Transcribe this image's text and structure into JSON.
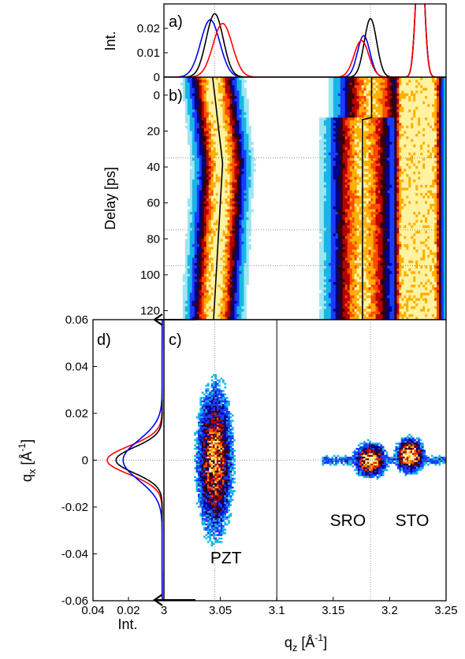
{
  "chart_data": [
    {
      "panel": "a",
      "panel_label": "a)",
      "type": "line",
      "ylabel": "Int.",
      "xlim": [
        3.0,
        3.25
      ],
      "ylim": [
        0,
        0.03
      ],
      "yticks": [
        0,
        0.01,
        0.02
      ],
      "ytick_labels": [
        "0",
        "0.01",
        "0.02"
      ],
      "series": [
        {
          "color": "#0000ff",
          "peaks": [
            {
              "center": 3.041,
              "height": 0.0235,
              "width": 0.0085
            },
            {
              "center": 3.177,
              "height": 0.017,
              "width": 0.0055
            },
            {
              "center": 3.227,
              "height": 0.06,
              "width": 0.0035
            }
          ]
        },
        {
          "color": "#000000",
          "peaks": [
            {
              "center": 3.045,
              "height": 0.026,
              "width": 0.0075
            },
            {
              "center": 3.183,
              "height": 0.024,
              "width": 0.0055
            },
            {
              "center": 3.227,
              "height": 0.06,
              "width": 0.0035
            }
          ]
        },
        {
          "color": "#ff0000",
          "peaks": [
            {
              "center": 3.052,
              "height": 0.022,
              "width": 0.0085
            },
            {
              "center": 3.175,
              "height": 0.015,
              "width": 0.0065
            },
            {
              "center": 3.227,
              "height": 0.06,
              "width": 0.0035
            }
          ]
        }
      ]
    },
    {
      "panel": "b",
      "panel_label": "b)",
      "type": "heatmap",
      "ylabel": "Delay [ps]",
      "xlim": [
        3.0,
        3.25
      ],
      "ylim": [
        -10,
        125
      ],
      "yticks": [
        0,
        20,
        40,
        60,
        80,
        100,
        120
      ],
      "ytick_labels": [
        "0",
        "20",
        "40",
        "60",
        "80",
        "100",
        "120"
      ],
      "hlines_delay": [
        35,
        75,
        95
      ],
      "bands": [
        {
          "name_hint": "PZT",
          "center_start": 3.045,
          "center_max": 3.052,
          "max_delay": 38,
          "center_end": 3.044,
          "width": 0.013
        },
        {
          "name_hint": "SRO",
          "center_start": 3.184,
          "center_after": 3.176,
          "switch_delay": 13,
          "width": 0.018
        },
        {
          "name_hint": "STO",
          "x_from": 3.212,
          "x_to": 3.238
        }
      ],
      "colormap": [
        "#ffffff",
        "#9ae6f2",
        "#18b6e6",
        "#1a3cff",
        "#000088",
        "#3a0000",
        "#b80000",
        "#ff4a00",
        "#ffb000",
        "#fff2a0"
      ]
    },
    {
      "panel": "c",
      "panel_label": "c)",
      "type": "heatmap",
      "xlabel": "q",
      "xlabel_sub": "z",
      "xlabel_unit": " [Å",
      "xlabel_sup": "-1",
      "xlabel_close": "]",
      "xlim": [
        3.0,
        3.25
      ],
      "ylim": [
        -0.06,
        0.06
      ],
      "xticks": [
        3.0,
        3.05,
        3.1,
        3.15,
        3.2,
        3.25
      ],
      "xtick_labels": [
        "3",
        "3.05",
        "3.1",
        "3.15",
        "3.2",
        "3.25"
      ],
      "vline_solid_qz": 3.1,
      "vlines_dotted_qz": [
        3.045,
        3.183
      ],
      "annotations": [
        {
          "text": "PZT",
          "qz": 3.055,
          "qx": -0.044
        },
        {
          "text": "SRO",
          "qz": 3.163,
          "qx": -0.028
        },
        {
          "text": "STO",
          "qz": 3.22,
          "qx": -0.028
        }
      ],
      "spots": [
        {
          "qz": 3.045,
          "qx": 0.0,
          "sigma_qz": 0.009,
          "sigma_qx": 0.018,
          "intensity": 0.75
        },
        {
          "qz": 3.183,
          "qx": 0.0,
          "sigma_qz": 0.008,
          "sigma_qx": 0.004,
          "intensity": 0.95
        },
        {
          "qz": 3.218,
          "qx": 0.002,
          "sigma_qz": 0.007,
          "sigma_qx": 0.004,
          "intensity": 1.0
        }
      ]
    },
    {
      "panel": "d",
      "panel_label": "d)",
      "type": "line",
      "xlabel": "Int.",
      "ylabel": "q",
      "ylabel_sub": "x",
      "ylabel_unit": " [Å",
      "ylabel_sup": "-1",
      "ylabel_close": "]",
      "xlim_reversed": [
        0.04,
        0.0
      ],
      "ylim": [
        -0.06,
        0.06
      ],
      "xticks": [
        0.04,
        0.02
      ],
      "xtick_labels": [
        "0.04",
        "0.02"
      ],
      "yticks": [
        0.06,
        0.04,
        0.02,
        0,
        -0.02,
        -0.04,
        -0.06
      ],
      "ytick_labels": [
        "0.06",
        "0.04",
        "0.02",
        "0",
        "-0.02",
        "-0.04",
        "-0.06"
      ],
      "series": [
        {
          "color": "#ff0000",
          "center": 0.0,
          "height": 0.031,
          "width": 0.006,
          "background": 0.001
        },
        {
          "color": "#000000",
          "center": 0.0,
          "height": 0.026,
          "width": 0.0055,
          "background": 0.001
        },
        {
          "color": "#0000ff",
          "center": 0.0,
          "height": 0.022,
          "width": 0.0085,
          "background": 0.001
        }
      ]
    }
  ]
}
